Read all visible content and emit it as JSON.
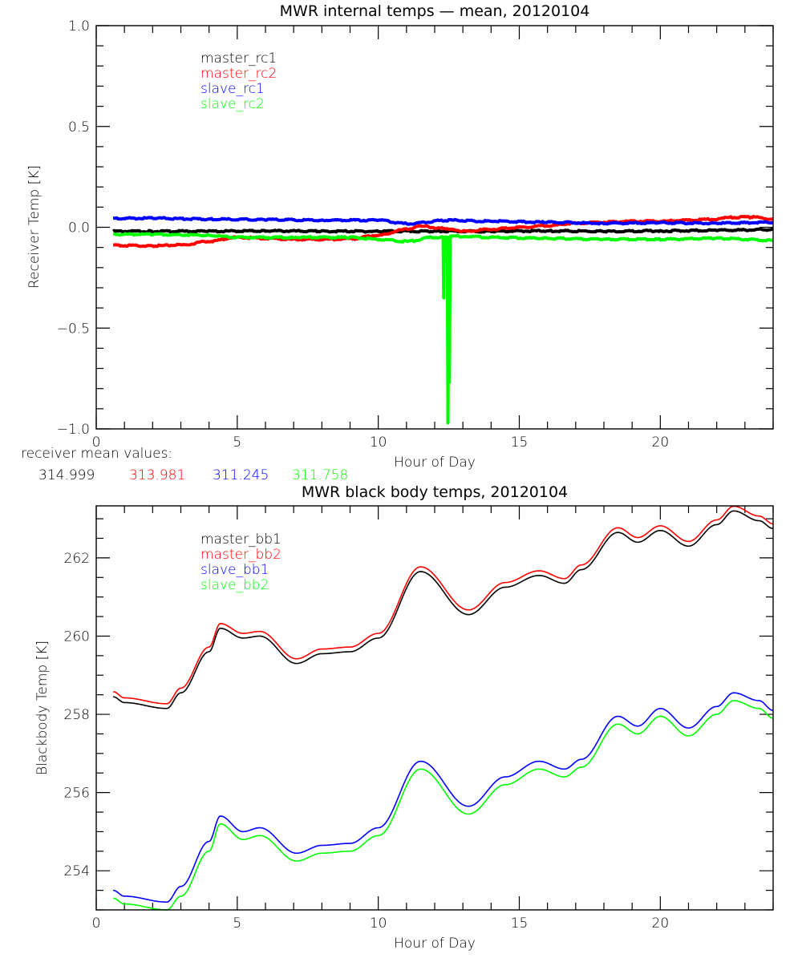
{
  "chart_data": [
    {
      "type": "line",
      "title": "MWR internal temps — mean, 20120104",
      "xlabel": "Hour of Day",
      "ylabel": "Receiver Temp [K]",
      "xlim": [
        0,
        24
      ],
      "ylim": [
        -1.0,
        1.0
      ],
      "xticks": [
        0,
        5,
        10,
        15,
        20
      ],
      "xtick_labels": [
        "0",
        "5",
        "10",
        "15",
        "20"
      ],
      "yticks": [
        -1.0,
        -0.5,
        0.0,
        0.5,
        1.0
      ],
      "ytick_labels": [
        "−1.0",
        "−0.5",
        "0.0",
        "0.5",
        "1.0"
      ],
      "grid": false,
      "legend_position": "top-left",
      "series": [
        {
          "name": "master_rc1",
          "color": "#000000",
          "x": [
            0.6,
            2,
            4,
            6,
            8,
            10,
            12,
            14,
            16,
            18,
            20,
            22,
            24
          ],
          "y": [
            -0.02,
            -0.02,
            -0.02,
            -0.018,
            -0.02,
            -0.02,
            -0.02,
            -0.02,
            -0.018,
            -0.02,
            -0.018,
            -0.015,
            -0.012
          ]
        },
        {
          "name": "master_rc2",
          "color": "#ff0000",
          "x": [
            0.6,
            2,
            3,
            4,
            5,
            6,
            7,
            8,
            9,
            10,
            11,
            11.5,
            12.3,
            13,
            14,
            15,
            16,
            17,
            18,
            19,
            20,
            21,
            22,
            22.5,
            23.3,
            24
          ],
          "y": [
            -0.09,
            -0.092,
            -0.088,
            -0.07,
            -0.05,
            -0.055,
            -0.06,
            -0.06,
            -0.058,
            -0.04,
            -0.01,
            0.005,
            -0.005,
            -0.02,
            -0.01,
            0.0,
            0.008,
            0.02,
            0.025,
            0.03,
            0.03,
            0.035,
            0.04,
            0.05,
            0.05,
            0.04
          ]
        },
        {
          "name": "slave_rc1",
          "color": "#0000ff",
          "x": [
            0.6,
            2,
            4,
            6,
            8,
            10,
            11,
            12.5,
            14,
            16,
            18,
            20,
            22,
            24
          ],
          "y": [
            0.044,
            0.045,
            0.04,
            0.038,
            0.035,
            0.035,
            0.018,
            0.035,
            0.03,
            0.025,
            0.02,
            0.022,
            0.02,
            0.025
          ]
        },
        {
          "name": "slave_rc2",
          "color": "#00ff00",
          "x": [
            0.6,
            2,
            4,
            5,
            7,
            9,
            10,
            11,
            12,
            12.3,
            12.32,
            12.34,
            12.45,
            12.47,
            12.5,
            12.52,
            12.55,
            13,
            14,
            16,
            18,
            20,
            22,
            24
          ],
          "y": [
            -0.035,
            -0.035,
            -0.04,
            -0.05,
            -0.05,
            -0.05,
            -0.06,
            -0.07,
            -0.05,
            -0.05,
            -0.35,
            -0.05,
            -0.05,
            -0.97,
            -0.05,
            -0.77,
            -0.045,
            -0.045,
            -0.05,
            -0.055,
            -0.06,
            -0.06,
            -0.055,
            -0.065
          ]
        }
      ],
      "annotation": {
        "label": "receiver mean values:",
        "values": [
          {
            "text": "314.999",
            "color": "#000000"
          },
          {
            "text": "313.981",
            "color": "#ff0000"
          },
          {
            "text": "311.245",
            "color": "#0000ff"
          },
          {
            "text": "311.758",
            "color": "#00ff00"
          }
        ]
      }
    },
    {
      "type": "line",
      "title": "MWR black body temps, 20120104",
      "xlabel": "Hour of Day",
      "ylabel": "Blackbody Temp [K]",
      "xlim": [
        0,
        24
      ],
      "ylim": [
        253.0,
        263.33
      ],
      "xticks": [
        0,
        5,
        10,
        15,
        20
      ],
      "xtick_labels": [
        "0",
        "5",
        "10",
        "15",
        "20"
      ],
      "yticks": [
        254,
        256,
        258,
        260,
        262
      ],
      "ytick_labels": [
        "254",
        "256",
        "258",
        "260",
        "262"
      ],
      "grid": false,
      "legend_position": "top-left",
      "series": [
        {
          "name": "master_bb1",
          "color": "#000000",
          "x": [
            0.6,
            1.0,
            2.5,
            3.0,
            4.0,
            4.4,
            5.2,
            5.8,
            7.1,
            8.0,
            9.0,
            10.0,
            11.5,
            13.2,
            14.5,
            15.7,
            16.6,
            17.2,
            18.5,
            19.2,
            20.0,
            21.0,
            22.0,
            22.6,
            23.5,
            24.0
          ],
          "y": [
            258.45,
            258.3,
            258.15,
            258.55,
            259.6,
            260.2,
            259.95,
            260.0,
            259.3,
            259.55,
            259.6,
            259.95,
            261.65,
            260.55,
            261.25,
            261.55,
            261.35,
            261.7,
            262.65,
            262.4,
            262.7,
            262.3,
            262.85,
            263.2,
            262.95,
            262.75
          ]
        },
        {
          "name": "master_bb2",
          "color": "#ff0000",
          "x": [
            0.6,
            1.0,
            2.5,
            3.0,
            4.0,
            4.4,
            5.2,
            5.8,
            7.1,
            8.0,
            9.0,
            10.0,
            11.5,
            13.2,
            14.5,
            15.7,
            16.6,
            17.2,
            18.5,
            19.2,
            20.0,
            21.0,
            22.0,
            22.6,
            23.5,
            24.0
          ],
          "y": [
            258.58,
            258.42,
            258.27,
            258.67,
            259.72,
            260.32,
            260.07,
            260.12,
            259.42,
            259.67,
            259.72,
            260.07,
            261.77,
            260.67,
            261.37,
            261.67,
            261.47,
            261.82,
            262.77,
            262.52,
            262.82,
            262.42,
            262.97,
            263.32,
            263.07,
            262.87
          ]
        },
        {
          "name": "slave_bb1",
          "color": "#0000ff",
          "x": [
            0.6,
            1.0,
            2.5,
            3.0,
            4.0,
            4.4,
            5.2,
            5.8,
            7.1,
            8.0,
            9.0,
            10.0,
            11.5,
            13.2,
            14.5,
            15.7,
            16.6,
            17.2,
            18.5,
            19.2,
            20.0,
            21.0,
            22.0,
            22.6,
            23.5,
            24.0
          ],
          "y": [
            253.5,
            253.35,
            253.2,
            253.6,
            254.75,
            255.4,
            255.0,
            255.1,
            254.45,
            254.65,
            254.7,
            255.1,
            256.8,
            255.65,
            256.4,
            256.8,
            256.6,
            256.85,
            257.95,
            257.7,
            258.15,
            257.65,
            258.2,
            258.55,
            258.35,
            258.1
          ]
        },
        {
          "name": "slave_bb2",
          "color": "#00ff00",
          "x": [
            0.6,
            1.0,
            2.5,
            3.0,
            4.0,
            4.4,
            5.2,
            5.8,
            7.1,
            8.0,
            9.0,
            10.0,
            11.5,
            13.2,
            14.5,
            15.7,
            16.6,
            17.2,
            18.5,
            19.2,
            20.0,
            21.0,
            22.0,
            22.6,
            23.5,
            24.0
          ],
          "y": [
            253.3,
            253.15,
            253.0,
            253.35,
            254.5,
            255.2,
            254.8,
            254.9,
            254.25,
            254.45,
            254.5,
            254.9,
            256.6,
            255.45,
            256.2,
            256.6,
            256.4,
            256.65,
            257.75,
            257.5,
            257.95,
            257.45,
            258.0,
            258.35,
            258.15,
            257.9
          ]
        }
      ]
    }
  ]
}
